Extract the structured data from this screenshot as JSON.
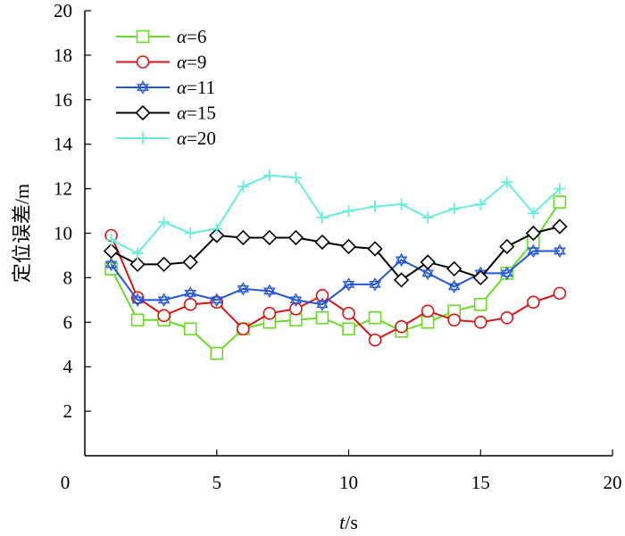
{
  "chart_data": {
    "type": "line",
    "xlabel": {
      "var": "t",
      "unit": "/s"
    },
    "ylabel": "定位误差/m",
    "xlim": [
      0,
      20
    ],
    "ylim": [
      0,
      20
    ],
    "x_ticks": [
      0,
      5,
      10,
      15,
      20
    ],
    "y_ticks": [
      2,
      4,
      6,
      8,
      10,
      12,
      14,
      16,
      18,
      20
    ],
    "legend_position": "top-left",
    "grid": false,
    "x": [
      1,
      2,
      3,
      4,
      5,
      6,
      7,
      8,
      9,
      10,
      11,
      12,
      13,
      14,
      15,
      16,
      17,
      18
    ],
    "series": [
      {
        "name": "6",
        "legend_var": "α",
        "legend_eq": "=",
        "color": "#66dd22",
        "marker": "square",
        "values": [
          8.4,
          6.1,
          6.1,
          5.7,
          4.6,
          5.7,
          6.0,
          6.1,
          6.2,
          5.7,
          6.2,
          5.6,
          6.0,
          6.5,
          6.8,
          8.2,
          9.6,
          11.4
        ]
      },
      {
        "name": "9",
        "legend_var": "α",
        "legend_eq": "=",
        "color": "#dd1111",
        "marker": "circle",
        "values": [
          9.9,
          7.1,
          6.3,
          6.8,
          6.9,
          5.7,
          6.4,
          6.6,
          7.2,
          6.4,
          5.2,
          5.8,
          6.5,
          6.1,
          6.0,
          6.2,
          6.9,
          7.3
        ]
      },
      {
        "name": "11",
        "legend_var": "α",
        "legend_eq": "=",
        "color": "#2255dd",
        "marker": "star",
        "values": [
          8.6,
          7.0,
          7.0,
          7.3,
          7.0,
          7.5,
          7.4,
          7.0,
          6.8,
          7.7,
          7.7,
          8.8,
          8.2,
          7.6,
          8.2,
          8.2,
          9.2,
          9.2
        ]
      },
      {
        "name": "15",
        "legend_var": "α",
        "legend_eq": "=",
        "color": "#000000",
        "marker": "diamond",
        "values": [
          9.2,
          8.6,
          8.6,
          8.7,
          9.9,
          9.8,
          9.8,
          9.8,
          9.6,
          9.4,
          9.3,
          7.9,
          8.7,
          8.4,
          8.0,
          9.4,
          10.0,
          10.3
        ]
      },
      {
        "name": "20",
        "legend_var": "α",
        "legend_eq": "=",
        "color": "#66eedd",
        "marker": "plus",
        "values": [
          9.7,
          9.1,
          10.5,
          10.0,
          10.2,
          12.1,
          12.6,
          12.5,
          10.7,
          11.0,
          11.2,
          11.3,
          10.7,
          11.1,
          11.3,
          12.3,
          10.9,
          12.0
        ]
      }
    ]
  }
}
